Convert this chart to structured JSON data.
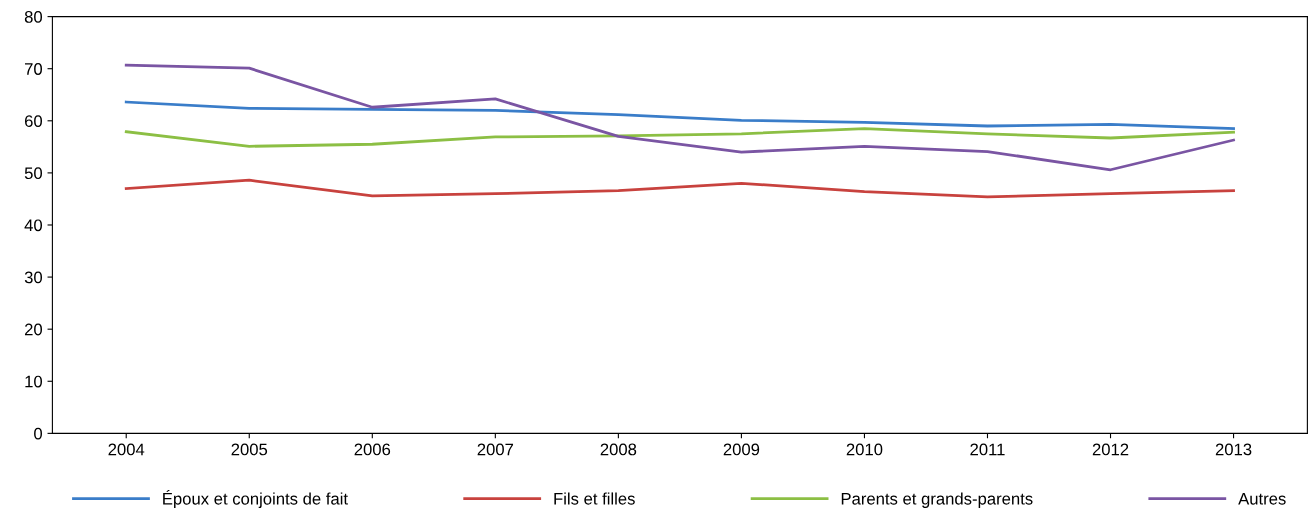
{
  "chart_data": {
    "type": "line",
    "categories": [
      "2004",
      "2005",
      "2006",
      "2007",
      "2008",
      "2009",
      "2010",
      "2011",
      "2012",
      "2013"
    ],
    "series": [
      {
        "name": "Époux et conjoints de fait",
        "color": "#3a7dc9",
        "values": [
          63.6,
          62.4,
          62.2,
          62.0,
          61.2,
          60.1,
          59.7,
          59.0,
          59.3,
          58.5
        ]
      },
      {
        "name": "Fils et filles",
        "color": "#c8423e",
        "values": [
          47.0,
          48.6,
          45.6,
          46.0,
          46.6,
          48.0,
          46.4,
          45.4,
          46.0,
          46.6
        ]
      },
      {
        "name": "Parents et grands-parents",
        "color": "#8cbf44",
        "values": [
          57.9,
          55.1,
          55.5,
          56.9,
          57.1,
          57.5,
          58.5,
          57.5,
          56.7,
          57.8
        ]
      },
      {
        "name": "Autres",
        "color": "#7a55a3",
        "values": [
          70.7,
          70.1,
          62.6,
          64.2,
          57.0,
          54.0,
          55.1,
          54.1,
          50.6,
          56.3
        ]
      }
    ],
    "ylim": [
      0,
      80
    ],
    "yticks": [
      0,
      10,
      20,
      30,
      40,
      50,
      60,
      70,
      80
    ],
    "grid": false,
    "legend": "bottom",
    "marker": "none",
    "line_style": "solid"
  }
}
